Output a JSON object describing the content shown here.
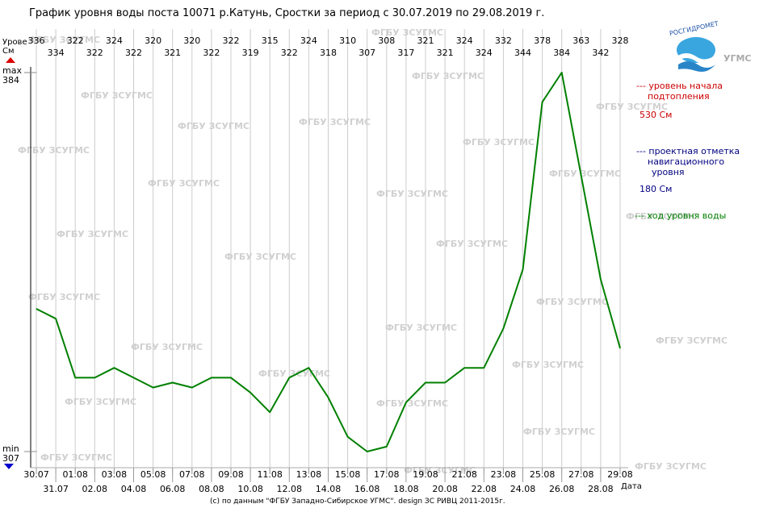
{
  "chart_data": {
    "type": "line",
    "title": "График уровня воды поста 10071 р.Катунь, Сростки за период с 30.07.2019 по 29.08.2019 г.",
    "y_axis_label_line1": "Урове",
    "y_axis_label_line2": "Cм",
    "max_label": "max",
    "max_value": "384",
    "min_label": "min",
    "min_value": "307",
    "x_axis_label": "Дата",
    "ylim": [
      307,
      384
    ],
    "grid": "vertical",
    "x": [
      "30.07",
      "31.07",
      "01.08",
      "02.08",
      "03.08",
      "04.08",
      "05.08",
      "06.08",
      "07.08",
      "08.08",
      "09.08",
      "10.08",
      "11.08",
      "12.08",
      "13.08",
      "14.08",
      "15.08",
      "16.08",
      "17.08",
      "18.08",
      "19.08",
      "20.08",
      "21.08",
      "22.08",
      "23.08",
      "24.08",
      "25.08",
      "26.08",
      "27.08",
      "28.08",
      "29.08"
    ],
    "series": [
      {
        "name": "ход уровня воды",
        "color": "#008000",
        "values": [
          336,
          334,
          322,
          322,
          324,
          322,
          320,
          321,
          320,
          322,
          322,
          319,
          315,
          322,
          324,
          318,
          310,
          307,
          308,
          317,
          321,
          321,
          324,
          324,
          332,
          344,
          378,
          384,
          363,
          342,
          328
        ]
      }
    ]
  },
  "legend": {
    "flood_label_line1": "--- уровень начала",
    "flood_label_line2": "подтопления",
    "flood_value": "530 См",
    "flood_color": "#cc0000",
    "nav_label_line1": "--- проектная отметка",
    "nav_label_line2": "навигационного",
    "nav_label_line3": "уровня",
    "nav_value": "180 См",
    "nav_color": "#000080",
    "level_label": "--- ход уровня воды",
    "level_color": "#008000"
  },
  "logo": {
    "top_text": "РОСГИДРОМЕТ",
    "side_text": "УГМС"
  },
  "watermark_text": "ФГБУ ЗСУГМС",
  "footer": "(c) по данным \"ФГБУ Западно-Сибирское УГМС\". design ЗС РИВЦ 2011-2015г."
}
